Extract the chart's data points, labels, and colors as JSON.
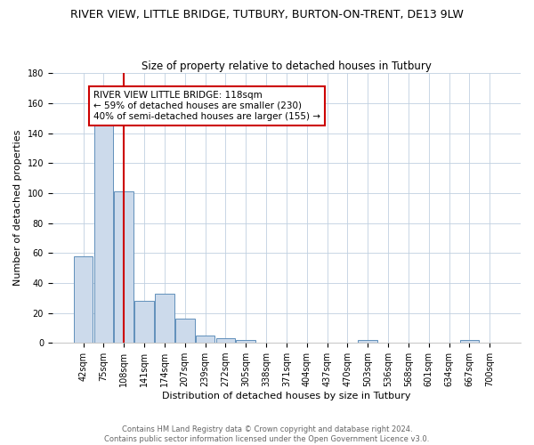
{
  "title": "RIVER VIEW, LITTLE BRIDGE, TUTBURY, BURTON-ON-TRENT, DE13 9LW",
  "subtitle": "Size of property relative to detached houses in Tutbury",
  "xlabel": "Distribution of detached houses by size in Tutbury",
  "ylabel": "Number of detached properties",
  "footnote1": "Contains HM Land Registry data © Crown copyright and database right 2024.",
  "footnote2": "Contains public sector information licensed under the Open Government Licence v3.0.",
  "categories": [
    "42sqm",
    "75sqm",
    "108sqm",
    "141sqm",
    "174sqm",
    "207sqm",
    "239sqm",
    "272sqm",
    "305sqm",
    "338sqm",
    "371sqm",
    "404sqm",
    "437sqm",
    "470sqm",
    "503sqm",
    "536sqm",
    "568sqm",
    "601sqm",
    "634sqm",
    "667sqm",
    "700sqm"
  ],
  "bar_heights": [
    58,
    145,
    101,
    28,
    33,
    16,
    5,
    3,
    2,
    0,
    0,
    0,
    0,
    0,
    2,
    0,
    0,
    0,
    0,
    2,
    0
  ],
  "bar_color": "#ccdaeb",
  "bar_edge_color": "#6090bb",
  "ylim": [
    0,
    180
  ],
  "yticks": [
    0,
    20,
    40,
    60,
    80,
    100,
    120,
    140,
    160,
    180
  ],
  "property_line_color": "#cc0000",
  "property_line_index": 2,
  "annotation_line1": "RIVER VIEW LITTLE BRIDGE: 118sqm",
  "annotation_line2": "← 59% of detached houses are smaller (230)",
  "annotation_line3": "40% of semi-detached houses are larger (155) →",
  "background_color": "#ffffff",
  "grid_color": "#c0d0e0",
  "title_fontsize": 9,
  "axis_label_fontsize": 8,
  "tick_fontsize": 7,
  "ylabel_fontsize": 8,
  "footnote_fontsize": 6,
  "annotation_fontsize": 7.5
}
